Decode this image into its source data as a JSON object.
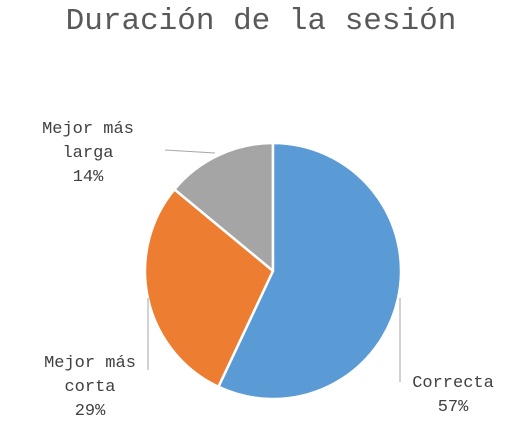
{
  "chart_data": {
    "type": "pie",
    "title": "Duración de la sesión",
    "categories": [
      "Correcta",
      "Mejor más corta",
      "Mejor más larga"
    ],
    "values": [
      57,
      29,
      14
    ],
    "value_labels": [
      "57%",
      "29%",
      "14%"
    ],
    "colors": [
      "#5b9bd5",
      "#ed7d31",
      "#a5a5a5"
    ]
  }
}
